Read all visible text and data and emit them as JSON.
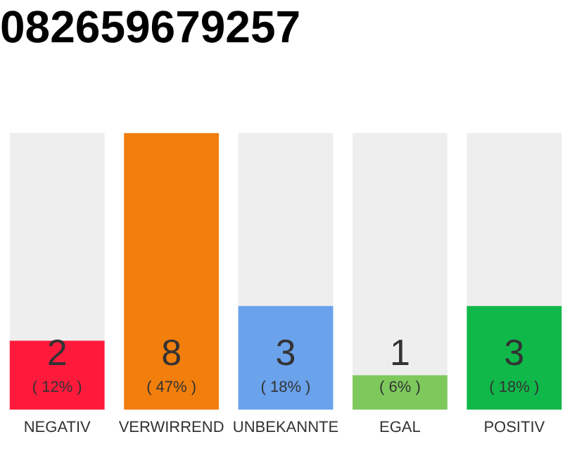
{
  "chart_data": {
    "type": "bar",
    "title": "082659679257",
    "categories": [
      "NEGATIV",
      "VERWIRREND",
      "UNBEKANNTE",
      "EGAL",
      "POSITIV"
    ],
    "values": [
      2,
      8,
      3,
      1,
      3
    ],
    "colors": [
      "#ff1a3c",
      "#f27e0c",
      "#6aa2ec",
      "#7ec95c",
      "#10b84a"
    ],
    "ylim": [
      0,
      8
    ],
    "tick_labels": "x",
    "grid": false,
    "legend": false,
    "data_labels": true,
    "annotations": [
      "( 12% )",
      "( 47% )",
      "( 18% )",
      "( 6% )",
      "( 18% )"
    ]
  }
}
